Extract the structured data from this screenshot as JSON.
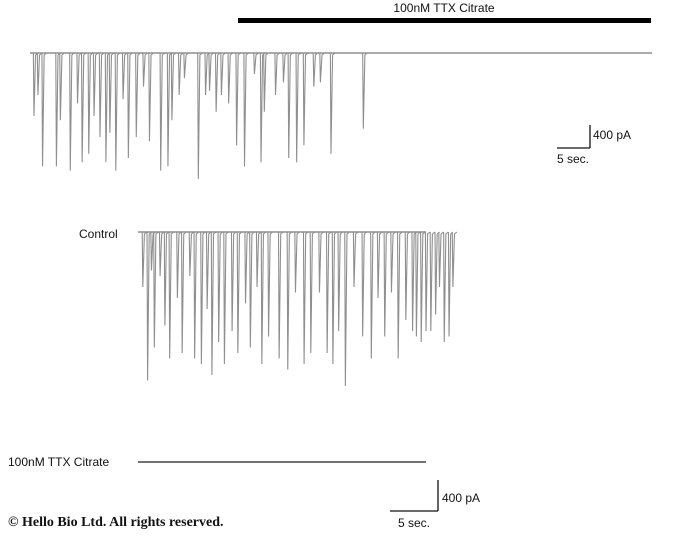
{
  "chart_data": {
    "type": "line",
    "panels": [
      {
        "id": "top-trace",
        "bar_label": "100nM TTX Citrate",
        "events": [
          {
            "t": 0.6,
            "a": 1.5
          },
          {
            "t": 1.2,
            "a": 1.0
          },
          {
            "t": 1.9,
            "a": 2.7
          },
          {
            "t": 4.0,
            "a": 2.7
          },
          {
            "t": 4.6,
            "a": 1.6
          },
          {
            "t": 6.1,
            "a": 2.8
          },
          {
            "t": 7.2,
            "a": 1.2
          },
          {
            "t": 7.9,
            "a": 2.6
          },
          {
            "t": 8.9,
            "a": 2.4
          },
          {
            "t": 9.7,
            "a": 1.5
          },
          {
            "t": 10.6,
            "a": 2.0
          },
          {
            "t": 11.5,
            "a": 2.6
          },
          {
            "t": 12.1,
            "a": 1.9
          },
          {
            "t": 13.0,
            "a": 2.8
          },
          {
            "t": 14.1,
            "a": 1.1
          },
          {
            "t": 14.9,
            "a": 2.5
          },
          {
            "t": 16.1,
            "a": 2.0
          },
          {
            "t": 17.2,
            "a": 0.8
          },
          {
            "t": 18.1,
            "a": 2.1
          },
          {
            "t": 19.8,
            "a": 2.8
          },
          {
            "t": 20.9,
            "a": 2.7
          },
          {
            "t": 21.5,
            "a": 1.6
          },
          {
            "t": 22.6,
            "a": 1.0
          },
          {
            "t": 23.4,
            "a": 0.6
          },
          {
            "t": 25.5,
            "a": 3.0
          },
          {
            "t": 26.6,
            "a": 1.0
          },
          {
            "t": 27.2,
            "a": 0.9
          },
          {
            "t": 28.2,
            "a": 1.4
          },
          {
            "t": 29.0,
            "a": 1.0
          },
          {
            "t": 30.1,
            "a": 1.2
          },
          {
            "t": 31.3,
            "a": 2.2
          },
          {
            "t": 32.5,
            "a": 2.7
          },
          {
            "t": 34.0,
            "a": 0.5
          },
          {
            "t": 35.0,
            "a": 2.6
          },
          {
            "t": 35.5,
            "a": 1.4
          },
          {
            "t": 37.2,
            "a": 1.0
          },
          {
            "t": 38.4,
            "a": 0.7
          },
          {
            "t": 39.2,
            "a": 2.5
          },
          {
            "t": 40.4,
            "a": 2.6
          },
          {
            "t": 41.5,
            "a": 2.2
          },
          {
            "t": 43.0,
            "a": 0.8
          },
          {
            "t": 44.0,
            "a": 0.7
          },
          {
            "t": 45.6,
            "a": 2.4
          },
          {
            "t": 50.5,
            "a": 1.8
          }
        ]
      },
      {
        "id": "control-trace",
        "label": "Control",
        "events": [
          {
            "t": 0.5,
            "a": 1.0
          },
          {
            "t": 1.0,
            "a": 2.7
          },
          {
            "t": 1.4,
            "a": 0.7
          },
          {
            "t": 1.7,
            "a": 2.1
          },
          {
            "t": 2.3,
            "a": 0.8
          },
          {
            "t": 2.8,
            "a": 1.7
          },
          {
            "t": 3.3,
            "a": 2.3
          },
          {
            "t": 4.1,
            "a": 1.2
          },
          {
            "t": 4.6,
            "a": 2.2
          },
          {
            "t": 5.4,
            "a": 0.8
          },
          {
            "t": 5.9,
            "a": 2.3
          },
          {
            "t": 6.6,
            "a": 2.4
          },
          {
            "t": 7.2,
            "a": 1.4
          },
          {
            "t": 7.7,
            "a": 2.6
          },
          {
            "t": 8.4,
            "a": 2.0
          },
          {
            "t": 9.0,
            "a": 2.4
          },
          {
            "t": 9.8,
            "a": 1.8
          },
          {
            "t": 10.4,
            "a": 2.2
          },
          {
            "t": 11.2,
            "a": 1.3
          },
          {
            "t": 11.7,
            "a": 2.1
          },
          {
            "t": 12.4,
            "a": 1.0
          },
          {
            "t": 12.9,
            "a": 2.4
          },
          {
            "t": 13.6,
            "a": 1.9
          },
          {
            "t": 14.7,
            "a": 2.3
          },
          {
            "t": 15.6,
            "a": 2.5
          },
          {
            "t": 16.4,
            "a": 1.1
          },
          {
            "t": 17.3,
            "a": 2.4
          },
          {
            "t": 18.0,
            "a": 2.2
          },
          {
            "t": 18.9,
            "a": 1.1
          },
          {
            "t": 19.7,
            "a": 2.2
          },
          {
            "t": 20.3,
            "a": 2.4
          },
          {
            "t": 20.9,
            "a": 1.8
          },
          {
            "t": 21.6,
            "a": 2.8
          },
          {
            "t": 22.5,
            "a": 1.0
          },
          {
            "t": 23.4,
            "a": 1.9
          },
          {
            "t": 24.3,
            "a": 2.3
          },
          {
            "t": 25.0,
            "a": 1.2
          },
          {
            "t": 25.7,
            "a": 1.9
          },
          {
            "t": 26.4,
            "a": 1.1
          },
          {
            "t": 27.1,
            "a": 2.3
          },
          {
            "t": 27.9,
            "a": 1.6
          },
          {
            "t": 28.6,
            "a": 1.8
          },
          {
            "t": 29.0,
            "a": 1.9
          },
          {
            "t": 29.5,
            "a": 2.0
          },
          {
            "t": 30.0,
            "a": 1.8
          },
          {
            "t": 30.5,
            "a": 1.8
          },
          {
            "t": 31.0,
            "a": 1.5
          },
          {
            "t": 31.4,
            "a": 1.0
          },
          {
            "t": 31.9,
            "a": 2.0
          },
          {
            "t": 32.4,
            "a": 1.9
          },
          {
            "t": 32.8,
            "a": 1.0
          }
        ]
      },
      {
        "id": "ttx-trace",
        "label": "100nM TTX Citrate",
        "events": []
      }
    ],
    "scale_bars": [
      {
        "id": "top",
        "current_label": "400 pA",
        "time_label": "5 sec."
      },
      {
        "id": "bottom",
        "current_label": "400 pA",
        "time_label": "5 sec."
      }
    ],
    "colors": {
      "trace": "#8f8f8f",
      "bar": "#000000",
      "scale": "#111111"
    }
  },
  "copyright": "© Hello Bio Ltd. All rights reserved."
}
